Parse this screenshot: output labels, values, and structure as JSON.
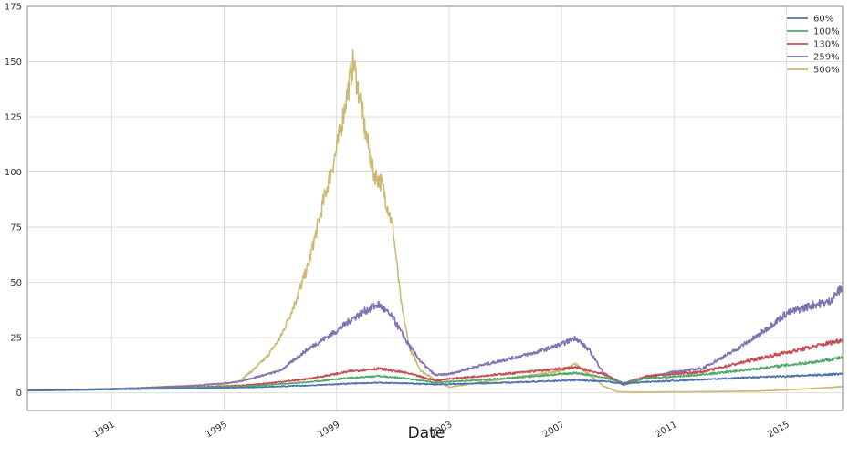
{
  "chart_data": {
    "type": "line",
    "title": "",
    "xlabel": "Date",
    "ylabel": "",
    "xlim": [
      1988.0,
      2017.0
    ],
    "ylim": [
      -8,
      175
    ],
    "yticks": [
      0,
      25,
      50,
      75,
      100,
      125,
      150,
      175
    ],
    "xticks": [
      "1991",
      "1995",
      "1999",
      "2003",
      "2007",
      "2011",
      "2015"
    ],
    "grid": true,
    "legend_position": "top-right",
    "series": [
      {
        "name": "60%",
        "color": "#4c72b0",
        "x": [
          1988.0,
          1990.0,
          1992.0,
          1994.0,
          1996.0,
          1998.0,
          1999.5,
          2000.5,
          2001.5,
          2002.5,
          2003.0,
          2005.0,
          2007.5,
          2008.5,
          2009.2,
          2010.0,
          2012.0,
          2014.0,
          2016.0,
          2017.0
        ],
        "y": [
          1.0,
          1.3,
          1.7,
          2.0,
          2.5,
          3.3,
          4.2,
          4.6,
          4.3,
          3.8,
          3.9,
          4.6,
          5.7,
          5.2,
          4.2,
          4.9,
          6.0,
          7.1,
          8.0,
          8.6
        ]
      },
      {
        "name": "100%",
        "color": "#55a868",
        "x": [
          1988.0,
          1990.0,
          1992.0,
          1994.0,
          1996.0,
          1998.0,
          1999.5,
          2000.5,
          2001.5,
          2002.5,
          2003.0,
          2005.0,
          2007.5,
          2008.5,
          2009.2,
          2010.0,
          2012.0,
          2014.0,
          2016.0,
          2017.0
        ],
        "y": [
          1.0,
          1.4,
          1.9,
          2.3,
          3.1,
          4.8,
          6.8,
          7.6,
          6.5,
          4.7,
          5.0,
          6.5,
          9.0,
          7.0,
          4.3,
          6.5,
          8.2,
          11.0,
          14.0,
          16.0
        ]
      },
      {
        "name": "130%",
        "color": "#c44e52",
        "x": [
          1988.0,
          1990.0,
          1992.0,
          1994.0,
          1996.0,
          1998.0,
          1999.5,
          2000.5,
          2001.5,
          2002.5,
          2003.0,
          2005.0,
          2007.5,
          2008.5,
          2009.2,
          2010.0,
          2012.0,
          2014.0,
          2016.0,
          2017.0
        ],
        "y": [
          1.0,
          1.4,
          2.0,
          2.5,
          3.6,
          6.3,
          9.8,
          11.0,
          9.0,
          5.5,
          6.3,
          8.6,
          11.5,
          8.5,
          4.3,
          7.5,
          9.5,
          15.5,
          21.0,
          24.0
        ]
      },
      {
        "name": "259%",
        "color": "#8172b2",
        "x": [
          1988.0,
          1990.0,
          1992.0,
          1994.0,
          1995.5,
          1997.0,
          1998.0,
          1999.0,
          1999.5,
          2000.0,
          2000.5,
          2001.0,
          2001.5,
          2002.0,
          2002.5,
          2003.0,
          2004.0,
          2005.0,
          2006.0,
          2007.0,
          2007.5,
          2008.0,
          2008.5,
          2009.2,
          2010.0,
          2011.0,
          2012.0,
          2013.0,
          2014.0,
          2015.0,
          2016.0,
          2016.5,
          2017.0
        ],
        "y": [
          1.0,
          1.5,
          2.2,
          3.2,
          5.0,
          10.0,
          20.0,
          28.0,
          33.0,
          37.0,
          40.0,
          34.0,
          23.0,
          14.0,
          8.0,
          8.5,
          12.0,
          15.0,
          18.0,
          22.0,
          25.0,
          19.0,
          9.0,
          3.5,
          7.0,
          9.5,
          11.0,
          18.0,
          26.0,
          36.0,
          40.0,
          41.0,
          48.0
        ]
      },
      {
        "name": "500%",
        "color": "#ccb974",
        "x": [
          1988.0,
          1990.0,
          1991.0,
          1992.0,
          1993.0,
          1994.0,
          1995.0,
          1995.5,
          1996.0,
          1996.5,
          1997.0,
          1997.5,
          1998.0,
          1998.5,
          1999.0,
          1999.3,
          1999.6,
          2000.0,
          2000.3,
          2000.6,
          2001.0,
          2001.3,
          2001.6,
          2002.0,
          2002.5,
          2003.0,
          2004.0,
          2005.0,
          2006.0,
          2007.0,
          2007.5,
          2008.0,
          2008.5,
          2009.0,
          2009.5,
          2010.0,
          2012.0,
          2014.0,
          2015.0,
          2016.0,
          2017.0
        ],
        "y": [
          1.0,
          1.6,
          1.8,
          2.2,
          2.8,
          3.4,
          4.0,
          5.0,
          10.0,
          16.0,
          25.0,
          40.0,
          58.0,
          85.0,
          110.0,
          130.0,
          150.0,
          120.0,
          100.0,
          95.0,
          75.0,
          40.0,
          20.0,
          10.0,
          6.0,
          2.5,
          4.5,
          6.5,
          8.0,
          10.0,
          13.0,
          8.0,
          3.0,
          0.5,
          0.3,
          0.3,
          0.5,
          0.8,
          1.3,
          2.0,
          2.8
        ]
      }
    ]
  }
}
